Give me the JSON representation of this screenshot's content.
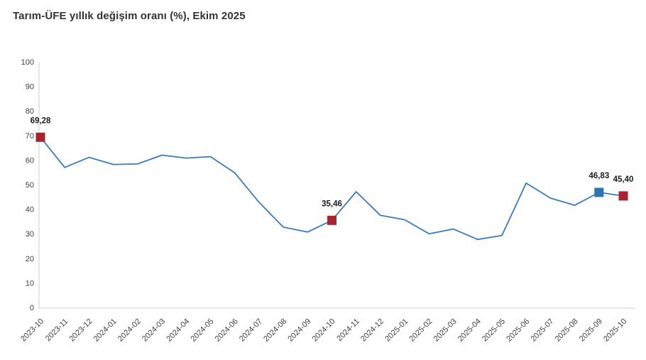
{
  "title": "Tarım-ÜFE yıllık değişim oranı (%), Ekim 2025",
  "chart_data": {
    "type": "line",
    "categories": [
      "2023-10",
      "2023-11",
      "2023-12",
      "2024-01",
      "2024-02",
      "2024-03",
      "2024-04",
      "2024-05",
      "2024-06",
      "2024-07",
      "2024-08",
      "2024-09",
      "2024-10",
      "2024-11",
      "2024-12",
      "2025-01",
      "2025-02",
      "2025-03",
      "2025-04",
      "2025-05",
      "2025-06",
      "2025-07",
      "2025-08",
      "2025-09",
      "2025-10"
    ],
    "values": [
      69.28,
      57.0,
      61.1,
      58.2,
      58.4,
      62.0,
      60.8,
      61.4,
      54.8,
      42.8,
      32.7,
      30.7,
      35.46,
      47.1,
      37.5,
      35.7,
      30.0,
      31.9,
      27.7,
      29.3,
      50.6,
      44.5,
      41.6,
      46.83,
      45.4
    ],
    "title": "Tarım-ÜFE yıllık değişim oranı (%), Ekim 2025",
    "xlabel": "",
    "ylabel": "",
    "ylim": [
      0,
      100
    ],
    "yticks": [
      0,
      10,
      20,
      30,
      40,
      50,
      60,
      70,
      80,
      90,
      100
    ],
    "grid": false,
    "legend": false,
    "highlighted_points": [
      {
        "category": "2023-10",
        "value": 69.28,
        "label": "69,28",
        "marker_color": "#a92230"
      },
      {
        "category": "2024-10",
        "value": 35.46,
        "label": "35,46",
        "marker_color": "#a92230"
      },
      {
        "category": "2025-09",
        "value": 46.83,
        "label": "46,83",
        "marker_color": "#2e74b5"
      },
      {
        "category": "2025-10",
        "value": 45.4,
        "label": "45,40",
        "marker_color": "#a92230"
      }
    ],
    "colors": {
      "line": "#3a7abd",
      "marker_red": "#a92230",
      "marker_blue": "#2e74b5",
      "axis_line": "#d9d9d9",
      "tick_label": "#404040",
      "point_label": "#1a1a1a",
      "background": "#ffffff"
    }
  }
}
